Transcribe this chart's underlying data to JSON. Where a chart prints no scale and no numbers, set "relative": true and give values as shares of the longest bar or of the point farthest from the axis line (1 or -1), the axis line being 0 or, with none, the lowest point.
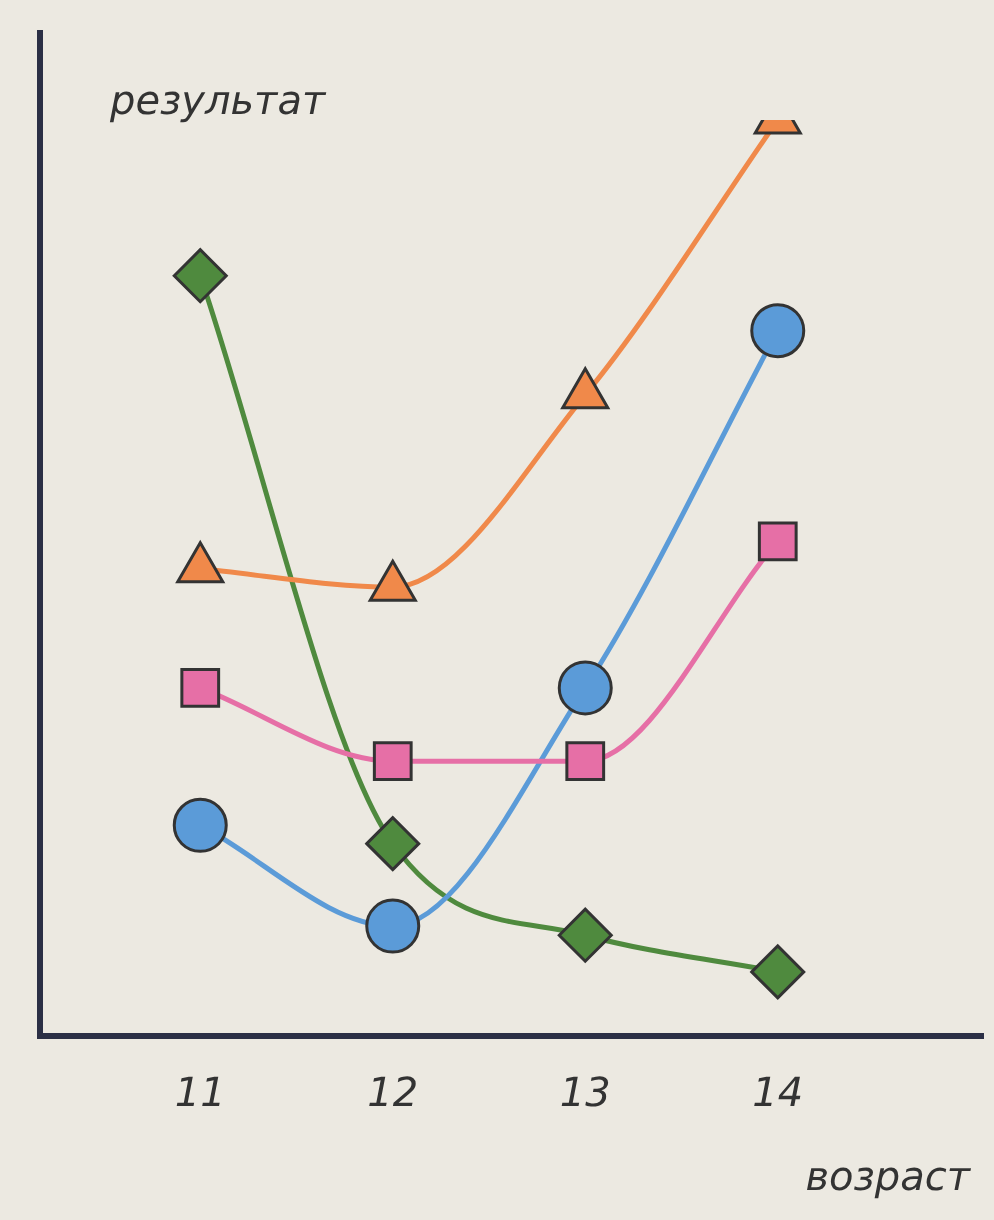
{
  "chart_data": {
    "type": "line",
    "relative": true,
    "xlabel": "возраст",
    "ylabel": "результат",
    "categories": [
      "11",
      "12",
      "13",
      "14"
    ],
    "legend": false,
    "series": [
      {
        "color": "#f0894a",
        "marker": "triangle",
        "values": [
          0.51,
          0.49,
          0.7,
          1
        ]
      },
      {
        "color": "#e66fa6",
        "marker": "square",
        "values": [
          0.38,
          0.3,
          0.3,
          0.54
        ]
      },
      {
        "color": "#5b9bd8",
        "marker": "circle",
        "values": [
          0.23,
          0.12,
          0.38,
          0.77
        ]
      },
      {
        "color": "#4f8a3e",
        "marker": "diamond",
        "values": [
          0.83,
          0.21,
          0.11,
          0.07
        ]
      }
    ]
  }
}
